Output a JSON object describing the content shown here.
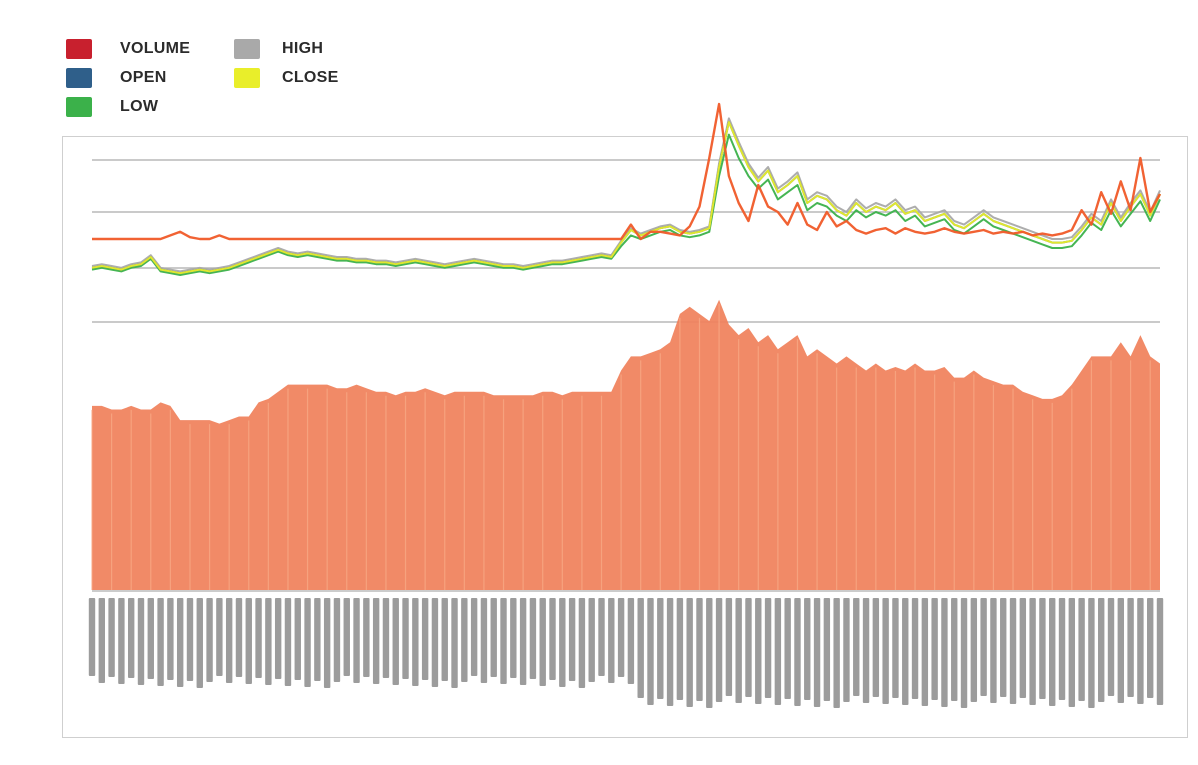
{
  "legend": {
    "items": [
      {
        "key": "volume",
        "label": "VOLUME",
        "color": "#c8202e"
      },
      {
        "key": "open",
        "label": "OPEN",
        "color": "#2f5f8a"
      },
      {
        "key": "low",
        "label": "LOW",
        "color": "#3bb14a"
      },
      {
        "key": "high",
        "label": "HIGH",
        "color": "#a9a9a9"
      },
      {
        "key": "close",
        "label": "CLOSE",
        "color": "#e9ee2a"
      }
    ]
  },
  "chart_data": {
    "type": "line",
    "title": "",
    "xlabel": "",
    "ylabel": "",
    "grid": true,
    "legend_position": "top-left",
    "n_points": 110,
    "area_color": "#f0805a",
    "series": [
      {
        "name": "VOLUME",
        "color": "#f05a28",
        "values": [
          20,
          20,
          20,
          20,
          20,
          20,
          20,
          20,
          22,
          24,
          21,
          20,
          20,
          22,
          20,
          20,
          20,
          20,
          20,
          20,
          20,
          20,
          20,
          20,
          20,
          20,
          20,
          20,
          20,
          20,
          20,
          20,
          20,
          20,
          20,
          20,
          20,
          20,
          20,
          20,
          20,
          20,
          20,
          20,
          20,
          20,
          20,
          20,
          20,
          20,
          20,
          20,
          20,
          20,
          20,
          28,
          20,
          24,
          24,
          23,
          22,
          27,
          38,
          65,
          95,
          55,
          40,
          30,
          50,
          38,
          35,
          28,
          40,
          28,
          25,
          35,
          27,
          30,
          25,
          23,
          25,
          26,
          23,
          26,
          24,
          23,
          24,
          26,
          24,
          23,
          24,
          25,
          23,
          24,
          23,
          24,
          22,
          23,
          22,
          23,
          25,
          36,
          28,
          46,
          34,
          52,
          36,
          65,
          35,
          45
        ]
      },
      {
        "name": "OPEN",
        "color": "#2f5f8a",
        "values": [
          4,
          5,
          4,
          3,
          5,
          6,
          10,
          3,
          2,
          1,
          2,
          3,
          2,
          3,
          4,
          6,
          8,
          10,
          12,
          14,
          12,
          11,
          12,
          11,
          10,
          9,
          9,
          8,
          8,
          7,
          7,
          6,
          7,
          8,
          7,
          6,
          5,
          6,
          7,
          8,
          7,
          6,
          5,
          5,
          4,
          5,
          6,
          7,
          7,
          8,
          9,
          10,
          11,
          10,
          18,
          25,
          22,
          24,
          26,
          27,
          24,
          23,
          24,
          26,
          60,
          85,
          72,
          60,
          52,
          58,
          46,
          50,
          55,
          40,
          44,
          42,
          36,
          33,
          40,
          35,
          38,
          36,
          40,
          34,
          36,
          30,
          32,
          34,
          28,
          26,
          30,
          34,
          30,
          28,
          26,
          24,
          22,
          20,
          18,
          18,
          19,
          25,
          32,
          28,
          40,
          30,
          38,
          45,
          33,
          45
        ]
      },
      {
        "name": "LOW",
        "color": "#3bb14a",
        "values": [
          3,
          4,
          3,
          2,
          4,
          5,
          9,
          2,
          1,
          0,
          1,
          2,
          1,
          2,
          3,
          5,
          7,
          9,
          11,
          13,
          11,
          10,
          11,
          10,
          9,
          8,
          8,
          7,
          7,
          6,
          6,
          5,
          6,
          7,
          6,
          5,
          4,
          5,
          6,
          7,
          6,
          5,
          4,
          4,
          3,
          4,
          5,
          6,
          6,
          7,
          8,
          9,
          10,
          9,
          16,
          22,
          20,
          22,
          24,
          25,
          22,
          21,
          22,
          24,
          55,
          78,
          65,
          55,
          48,
          53,
          42,
          46,
          50,
          36,
          40,
          38,
          33,
          30,
          36,
          32,
          35,
          33,
          36,
          30,
          33,
          27,
          29,
          31,
          25,
          23,
          27,
          31,
          27,
          25,
          23,
          21,
          19,
          17,
          15,
          15,
          16,
          22,
          29,
          25,
          36,
          27,
          34,
          41,
          30,
          42
        ]
      },
      {
        "name": "HIGH",
        "color": "#a9a9a9",
        "values": [
          5,
          6,
          5,
          4,
          6,
          7,
          11,
          4,
          3,
          2,
          3,
          4,
          3,
          4,
          5,
          7,
          9,
          11,
          13,
          15,
          13,
          12,
          13,
          12,
          11,
          10,
          10,
          9,
          9,
          8,
          8,
          7,
          8,
          9,
          8,
          7,
          6,
          7,
          8,
          9,
          8,
          7,
          6,
          6,
          5,
          6,
          7,
          8,
          8,
          9,
          10,
          11,
          12,
          11,
          19,
          26,
          23,
          25,
          27,
          28,
          25,
          24,
          25,
          27,
          62,
          87,
          74,
          62,
          54,
          60,
          48,
          52,
          57,
          42,
          46,
          44,
          38,
          35,
          42,
          37,
          40,
          38,
          42,
          36,
          38,
          32,
          34,
          36,
          30,
          28,
          32,
          36,
          32,
          30,
          28,
          26,
          24,
          22,
          20,
          20,
          21,
          27,
          34,
          30,
          42,
          32,
          40,
          47,
          35,
          47
        ]
      },
      {
        "name": "CLOSE",
        "color": "#e9ee2a",
        "values": [
          4,
          5,
          4,
          3,
          5,
          6,
          10,
          3,
          2,
          1,
          2,
          3,
          2,
          3,
          4,
          6,
          8,
          10,
          12,
          14,
          12,
          11,
          12,
          11,
          10,
          9,
          9,
          8,
          8,
          7,
          7,
          6,
          7,
          8,
          7,
          6,
          5,
          6,
          7,
          8,
          7,
          6,
          5,
          5,
          4,
          5,
          6,
          7,
          7,
          8,
          9,
          10,
          11,
          10,
          18,
          25,
          22,
          24,
          26,
          27,
          24,
          23,
          24,
          26,
          60,
          85,
          72,
          60,
          52,
          58,
          46,
          50,
          55,
          40,
          44,
          42,
          36,
          33,
          40,
          35,
          38,
          36,
          40,
          34,
          36,
          30,
          32,
          34,
          28,
          26,
          30,
          34,
          30,
          28,
          26,
          24,
          22,
          20,
          18,
          18,
          19,
          25,
          32,
          28,
          40,
          30,
          38,
          45,
          33,
          45
        ]
      }
    ],
    "area_values": [
      52,
      52,
      51,
      51,
      52,
      51,
      51,
      53,
      52,
      48,
      48,
      48,
      48,
      47,
      48,
      49,
      49,
      53,
      54,
      56,
      58,
      58,
      58,
      58,
      58,
      57,
      57,
      58,
      57,
      56,
      56,
      55,
      56,
      56,
      57,
      56,
      55,
      56,
      56,
      56,
      56,
      55,
      55,
      55,
      55,
      55,
      56,
      56,
      55,
      56,
      56,
      56,
      56,
      56,
      62,
      66,
      66,
      67,
      68,
      70,
      78,
      80,
      78,
      76,
      82,
      75,
      72,
      74,
      70,
      72,
      68,
      70,
      72,
      66,
      68,
      66,
      64,
      66,
      64,
      62,
      64,
      62,
      63,
      62,
      64,
      62,
      62,
      63,
      60,
      60,
      62,
      60,
      59,
      58,
      58,
      56,
      55,
      54,
      54,
      55,
      58,
      62,
      66,
      66,
      66,
      70,
      66,
      72,
      66,
      64
    ]
  }
}
